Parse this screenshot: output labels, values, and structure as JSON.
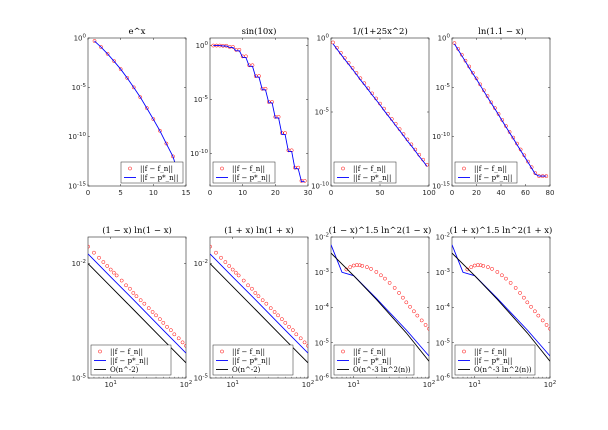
{
  "chart_data": [
    {
      "type": "line",
      "title": "e^x",
      "xscale": "linear",
      "yscale": "log",
      "xlim": [
        0,
        15
      ],
      "ylim": [
        1e-15,
        1
      ],
      "xticks": [
        0,
        5,
        10,
        15
      ],
      "yticks": [
        [
          1,
          "10^0"
        ],
        [
          1e-05,
          "10^-5"
        ],
        [
          1e-10,
          "10^-10"
        ],
        [
          1e-15,
          "10^-15"
        ]
      ],
      "legend_loc": "bottom-right",
      "legend": [
        "||f − f_n||",
        "||f − p*_n||"
      ],
      "series": [
        {
          "name": "||f − f_n||",
          "style": "red-circles",
          "x": [
            1,
            2,
            3,
            4,
            5,
            6,
            7,
            8,
            9,
            10,
            11,
            12,
            13,
            14
          ],
          "y": [
            0.5,
            0.12,
            0.025,
            0.0045,
            0.0007,
            9e-05,
            1e-05,
            1e-06,
            8e-08,
            6e-09,
            4e-10,
            2e-11,
            1e-12,
            8e-15
          ]
        },
        {
          "name": "||f − p*_n||",
          "style": "blue-line",
          "x": [
            1,
            2,
            3,
            4,
            5,
            6,
            7,
            8,
            9,
            10,
            11,
            12,
            13,
            14
          ],
          "y": [
            0.49,
            0.118,
            0.0245,
            0.0044,
            0.00069,
            8.9e-05,
            9.9e-06,
            9.9e-07,
            7.9e-08,
            5.9e-09,
            3.9e-10,
            1.9e-11,
            9.9e-13,
            8e-15
          ]
        }
      ]
    },
    {
      "type": "line",
      "title": "sin(10x)",
      "xscale": "linear",
      "yscale": "log",
      "xlim": [
        0,
        30
      ],
      "ylim": [
        1e-13,
        5
      ],
      "xticks": [
        0,
        10,
        20,
        30
      ],
      "yticks": [
        [
          1,
          "10^0"
        ],
        [
          1e-05,
          "10^-5"
        ],
        [
          1e-10,
          "10^-10"
        ]
      ],
      "legend_loc": "bottom-left",
      "legend": [
        "||f − f_n||",
        "||f − p*_n||"
      ],
      "series": [
        {
          "name": "||f − f_n||",
          "style": "red-circles",
          "x": [
            1,
            2,
            3,
            4,
            5,
            6,
            7,
            8,
            9,
            10,
            11,
            12,
            13,
            14,
            15,
            16,
            17,
            18,
            19,
            20,
            21,
            22,
            23,
            24,
            25,
            26,
            27,
            28,
            29
          ],
          "y": [
            1,
            1,
            1,
            0.95,
            0.95,
            0.75,
            0.75,
            0.4,
            0.4,
            0.1,
            0.1,
            0.015,
            0.015,
            0.0015,
            0.0015,
            0.0001,
            0.0001,
            6e-06,
            6e-06,
            2.5e-07,
            2.5e-07,
            8e-09,
            8e-09,
            2e-10,
            2e-10,
            5e-12,
            5e-12,
            3e-13,
            3e-13
          ]
        },
        {
          "name": "||f − p*_n||",
          "style": "blue-line",
          "x": [
            1,
            2,
            3,
            4,
            5,
            6,
            7,
            8,
            9,
            10,
            11,
            12,
            13,
            14,
            15,
            16,
            17,
            18,
            19,
            20,
            21,
            22,
            23,
            24,
            25,
            26,
            27,
            28,
            29
          ],
          "y": [
            0.98,
            0.98,
            0.98,
            0.9,
            0.9,
            0.68,
            0.68,
            0.33,
            0.33,
            0.08,
            0.08,
            0.012,
            0.012,
            0.0012,
            0.0012,
            8e-05,
            8e-05,
            5e-06,
            5e-06,
            2e-07,
            2e-07,
            6e-09,
            6e-09,
            1.6e-10,
            1.6e-10,
            4e-12,
            4e-12,
            2.5e-13,
            2.5e-13
          ]
        }
      ]
    },
    {
      "type": "line",
      "title": "1/(1+25x^2)",
      "xscale": "linear",
      "yscale": "log",
      "xlim": [
        0,
        100
      ],
      "ylim": [
        1e-10,
        1
      ],
      "xticks": [
        0,
        50,
        100
      ],
      "yticks": [
        [
          1,
          "10^0"
        ],
        [
          1e-05,
          "10^-5"
        ],
        [
          1e-10,
          "10^-10"
        ]
      ],
      "legend_loc": "bottom-left",
      "legend": [
        "||f − f_n||",
        "||f − p*_n||"
      ],
      "series": [
        {
          "name": "||f − f_n||",
          "style": "red-circles",
          "x": [
            2,
            6,
            10,
            14,
            18,
            22,
            26,
            30,
            34,
            38,
            42,
            46,
            50,
            54,
            58,
            62,
            66,
            70,
            74,
            78,
            82,
            86,
            90,
            94,
            98
          ],
          "y": [
            0.5,
            0.22,
            0.1,
            0.045,
            0.021,
            0.0095,
            0.0043,
            0.0019,
            0.00088,
            0.0004,
            0.00018,
            8.2e-05,
            3.7e-05,
            1.7e-05,
            7.6e-06,
            3.4e-06,
            1.6e-06,
            7e-07,
            3.2e-07,
            1.4e-07,
            6.5e-08,
            2.9e-08,
            1.3e-08,
            6e-09,
            2.7e-09
          ]
        },
        {
          "name": "||f − p*_n||",
          "style": "blue-line",
          "x": [
            2,
            6,
            10,
            14,
            18,
            22,
            26,
            30,
            34,
            38,
            42,
            46,
            50,
            54,
            58,
            62,
            66,
            70,
            74,
            78,
            82,
            86,
            90,
            94,
            98
          ],
          "y": [
            0.4,
            0.18,
            0.08,
            0.036,
            0.017,
            0.0076,
            0.0034,
            0.0015,
            0.0007,
            0.00032,
            0.00014,
            6.6e-05,
            3e-05,
            1.3e-05,
            6e-06,
            2.7e-06,
            1.2e-06,
            5.6e-07,
            2.5e-07,
            1.1e-07,
            5.2e-08,
            2.3e-08,
            1e-08,
            4.8e-09,
            2.1e-09
          ]
        }
      ]
    },
    {
      "type": "line",
      "title": "ln(1.1 − x)",
      "xscale": "linear",
      "yscale": "log",
      "xlim": [
        0,
        80
      ],
      "ylim": [
        1e-15,
        1
      ],
      "xticks": [
        0,
        20,
        40,
        60,
        80
      ],
      "yticks": [
        [
          1,
          "10^0"
        ],
        [
          1e-05,
          "10^-5"
        ],
        [
          1e-10,
          "10^-10"
        ],
        [
          1e-15,
          "10^-15"
        ]
      ],
      "legend_loc": "bottom-left",
      "legend": [
        "||f − f_n||",
        "||f − p*_n||"
      ],
      "series": [
        {
          "name": "||f − f_n||",
          "style": "red-circles",
          "x": [
            2,
            5,
            8,
            11,
            14,
            17,
            20,
            23,
            26,
            29,
            32,
            35,
            38,
            41,
            44,
            47,
            50,
            53,
            56,
            59,
            62,
            65,
            68,
            71,
            74,
            77
          ],
          "y": [
            0.3,
            0.08,
            0.02,
            0.005,
            0.0013,
            0.0003,
            8e-05,
            2e-05,
            5e-06,
            1.3e-06,
            3e-07,
            8e-08,
            2e-08,
            5e-09,
            1.2e-09,
            3e-10,
            8e-11,
            2e-11,
            5e-12,
            1.3e-12,
            3e-13,
            8e-14,
            2e-14,
            1e-14,
            1e-14,
            1e-14
          ]
        },
        {
          "name": "||f − p*_n||",
          "style": "blue-line",
          "x": [
            2,
            5,
            8,
            11,
            14,
            17,
            20,
            23,
            26,
            29,
            32,
            35,
            38,
            41,
            44,
            47,
            50,
            53,
            56,
            59,
            62,
            65,
            68,
            71,
            74,
            77
          ],
          "y": [
            0.25,
            0.065,
            0.016,
            0.004,
            0.001,
            0.00025,
            6.5e-05,
            1.6e-05,
            4e-06,
            1e-06,
            2.5e-07,
            6.5e-08,
            1.6e-08,
            4e-09,
            1e-09,
            2.5e-10,
            6.5e-11,
            1.6e-11,
            4e-12,
            1e-12,
            2.5e-13,
            6.5e-14,
            1.6e-14,
            1e-14,
            1e-14,
            1e-14
          ]
        }
      ]
    },
    {
      "type": "line",
      "title": "(1 − x) ln(1 − x)",
      "xscale": "log",
      "yscale": "log",
      "xlim": [
        5,
        100
      ],
      "ylim": [
        1e-05,
        0.05
      ],
      "xticks": [
        [
          10,
          "10^1"
        ],
        [
          100,
          "10^2"
        ]
      ],
      "yticks": [
        [
          0.01,
          "10^-2"
        ],
        [
          1e-05,
          "10^-5"
        ]
      ],
      "legend_loc": "bottom-left",
      "legend": [
        "||f − f_n||",
        "||f − p*_n||",
        "O(n^-2)"
      ],
      "series": [
        {
          "name": "||f − f_n||",
          "style": "red-circles",
          "x": [
            5,
            6,
            7,
            8,
            9,
            10,
            11,
            12,
            14,
            16,
            18,
            20,
            22,
            25,
            28,
            32,
            36,
            40,
            45,
            50,
            56,
            63,
            70,
            80,
            90,
            100
          ],
          "y": [
            0.028,
            0.0194,
            0.0143,
            0.011,
            0.0087,
            0.007,
            0.0058,
            0.0049,
            0.0036,
            0.0027,
            0.0022,
            0.0017,
            0.0014,
            0.0011,
            0.00089,
            0.00068,
            0.00054,
            0.00044,
            0.00035,
            0.00028,
            0.00022,
            0.00018,
            0.00014,
            0.00011,
            8.6e-05,
            7e-05
          ]
        },
        {
          "name": "||f − p*_n||",
          "style": "blue-line",
          "x": [
            5,
            10,
            20,
            50,
            100
          ],
          "y": [
            0.018,
            0.0045,
            0.00113,
            0.00018,
            4.5e-05
          ]
        },
        {
          "name": "O(n^-2)",
          "style": "black-line",
          "x": [
            5,
            10,
            20,
            50,
            100
          ],
          "y": [
            0.01,
            0.0025,
            0.000625,
            0.0001,
            2.5e-05
          ]
        }
      ]
    },
    {
      "type": "line",
      "title": "(1 + x) ln(1 + x)",
      "xscale": "log",
      "yscale": "log",
      "xlim": [
        5,
        100
      ],
      "ylim": [
        1e-05,
        0.05
      ],
      "xticks": [
        [
          10,
          "10^1"
        ],
        [
          100,
          "10^2"
        ]
      ],
      "yticks": [
        [
          0.01,
          "10^-2"
        ],
        [
          1e-05,
          "10^-5"
        ]
      ],
      "legend_loc": "bottom-left",
      "legend": [
        "||f − f_n||",
        "||f − p*_n||",
        "O(n^-2)"
      ],
      "series": [
        {
          "name": "||f − f_n||",
          "style": "red-circles",
          "x": [
            5,
            6,
            7,
            8,
            9,
            10,
            11,
            12,
            14,
            16,
            18,
            20,
            22,
            25,
            28,
            32,
            36,
            40,
            45,
            50,
            56,
            63,
            70,
            80,
            90,
            100
          ],
          "y": [
            0.028,
            0.0194,
            0.0143,
            0.011,
            0.0087,
            0.007,
            0.0058,
            0.0049,
            0.0036,
            0.0027,
            0.0022,
            0.0017,
            0.0014,
            0.0011,
            0.00089,
            0.00068,
            0.00054,
            0.00044,
            0.00035,
            0.00028,
            0.00022,
            0.00018,
            0.00014,
            0.00011,
            8.6e-05,
            7e-05
          ]
        },
        {
          "name": "||f − p*_n||",
          "style": "blue-line",
          "x": [
            5,
            10,
            20,
            50,
            100
          ],
          "y": [
            0.018,
            0.0045,
            0.00113,
            0.00018,
            4.5e-05
          ]
        },
        {
          "name": "O(n^-2)",
          "style": "black-line",
          "x": [
            5,
            10,
            20,
            50,
            100
          ],
          "y": [
            0.01,
            0.0025,
            0.000625,
            0.0001,
            2.5e-05
          ]
        }
      ]
    },
    {
      "type": "line",
      "title": "(1 − x)^1.5 ln^2(1 − x)",
      "xscale": "log",
      "yscale": "log",
      "xlim": [
        5,
        100
      ],
      "ylim": [
        1e-06,
        0.01
      ],
      "xticks": [
        [
          10,
          "10^1"
        ],
        [
          100,
          "10^2"
        ]
      ],
      "yticks": [
        [
          0.01,
          "10^-2"
        ],
        [
          0.001,
          "10^-3"
        ],
        [
          0.0001,
          "10^-4"
        ],
        [
          1e-05,
          "10^-5"
        ],
        [
          1e-06,
          "10^-6"
        ]
      ],
      "legend_loc": "bottom-left",
      "legend": [
        "||f − f_n||",
        "||f − p*_n||",
        "O(n^-3 ln^2(n))"
      ],
      "series": [
        {
          "name": "||f − f_n||",
          "style": "red-circles",
          "x": [
            8,
            9,
            10,
            11,
            12,
            13,
            15,
            17,
            20,
            23,
            26,
            30,
            35,
            40,
            45,
            50,
            56,
            63,
            70,
            80,
            90,
            100
          ],
          "y": [
            0.0012,
            0.0014,
            0.00155,
            0.0016,
            0.00158,
            0.00152,
            0.0014,
            0.00125,
            0.00102,
            0.00082,
            0.00066,
            0.0005,
            0.00036,
            0.00026,
            0.00019,
            0.00014,
            0.000105,
            7.8e-05,
            5.9e-05,
            4.3e-05,
            3.2e-05,
            2.5e-05
          ]
        },
        {
          "name": "||f − p*_n||",
          "style": "blue-line",
          "x": [
            5,
            7,
            10,
            20,
            50,
            100
          ],
          "y": [
            0.006,
            0.001,
            0.0008,
            0.00018,
            2.3e-05,
            4.2e-06
          ]
        },
        {
          "name": "O(n^-3 ln^2(n))",
          "style": "black-line",
          "x": [
            5,
            10,
            20,
            50,
            100
          ],
          "y": [
            0.0035,
            0.0008,
            0.00017,
            1.9e-05,
            3e-06
          ]
        }
      ]
    },
    {
      "type": "line",
      "title": "(1 + x)^1.5 ln^2(1 + x)",
      "xscale": "log",
      "yscale": "log",
      "xlim": [
        5,
        100
      ],
      "ylim": [
        1e-06,
        0.01
      ],
      "xticks": [
        [
          10,
          "10^1"
        ],
        [
          100,
          "10^2"
        ]
      ],
      "yticks": [
        [
          0.01,
          "10^-2"
        ],
        [
          0.001,
          "10^-3"
        ],
        [
          0.0001,
          "10^-4"
        ],
        [
          1e-05,
          "10^-5"
        ],
        [
          1e-06,
          "10^-6"
        ]
      ],
      "legend_loc": "bottom-left",
      "legend": [
        "||f − f_n||",
        "||f − p*_n||",
        "O(n^-3 ln^2(n))"
      ],
      "series": [
        {
          "name": "||f − f_n||",
          "style": "red-circles",
          "x": [
            8,
            9,
            10,
            11,
            12,
            13,
            15,
            17,
            20,
            23,
            26,
            30,
            35,
            40,
            45,
            50,
            56,
            63,
            70,
            80,
            90,
            100
          ],
          "y": [
            0.0012,
            0.0014,
            0.00155,
            0.0016,
            0.00158,
            0.00152,
            0.0014,
            0.00125,
            0.00102,
            0.00082,
            0.00066,
            0.0005,
            0.00036,
            0.00026,
            0.00019,
            0.00014,
            0.000105,
            7.8e-05,
            5.9e-05,
            4.3e-05,
            3.2e-05,
            2.5e-05
          ]
        },
        {
          "name": "||f − p*_n||",
          "style": "blue-line",
          "x": [
            5,
            7,
            10,
            20,
            50,
            100
          ],
          "y": [
            0.006,
            0.001,
            0.0008,
            0.00018,
            2.3e-05,
            4.2e-06
          ]
        },
        {
          "name": "O(n^-3 ln^2(n))",
          "style": "black-line",
          "x": [
            5,
            10,
            20,
            50,
            100
          ],
          "y": [
            0.0035,
            0.0008,
            0.00017,
            1.9e-05,
            3e-06
          ]
        }
      ]
    }
  ]
}
